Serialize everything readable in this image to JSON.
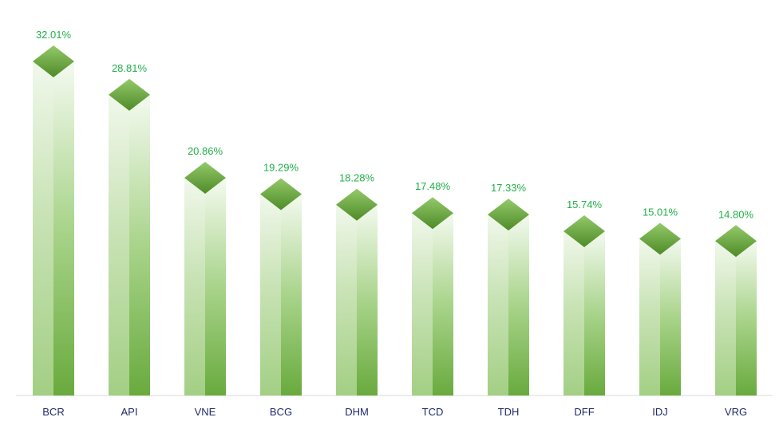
{
  "chart_data": {
    "type": "bar",
    "categories": [
      "BCR",
      "API",
      "VNE",
      "BCG",
      "DHM",
      "TCD",
      "TDH",
      "DFF",
      "IDJ",
      "VRG"
    ],
    "values": [
      32.01,
      28.81,
      20.86,
      19.29,
      18.28,
      17.48,
      17.33,
      15.74,
      15.01,
      14.8
    ],
    "value_labels": [
      "32.01%",
      "28.81%",
      "20.86%",
      "19.29%",
      "18.28%",
      "17.48%",
      "17.33%",
      "15.74%",
      "15.01%",
      "14.80%"
    ],
    "ylim": [
      0,
      32.01
    ],
    "grid": false,
    "style": "3d-column",
    "colors": {
      "value_label": "#22b04a",
      "category_label": "#1f2a6b",
      "bar_dark": "#6aaa3c",
      "bar_light": "#eef6e8",
      "top_light": "#8cc760",
      "top_dark": "#4e8a25",
      "axis": "#d9d9d9"
    }
  }
}
